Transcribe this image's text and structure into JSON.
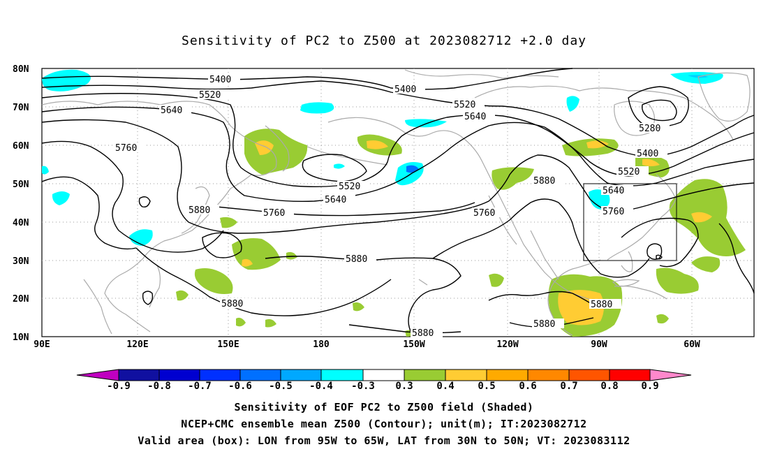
{
  "title": "Sensitivity of PC2 to Z500 at 2023082712 +2.0 day",
  "map": {
    "lat_labels": [
      "80N",
      "70N",
      "60N",
      "50N",
      "40N",
      "30N",
      "20N",
      "10N"
    ],
    "lon_labels": [
      "90E",
      "120E",
      "150E",
      "180",
      "150W",
      "120W",
      "90W",
      "60W"
    ],
    "box": {
      "lon": [
        "95W",
        "65W"
      ],
      "lat": [
        "30N",
        "50N"
      ]
    },
    "contour_values": [
      "5400",
      "5400",
      "5520",
      "5640",
      "5760",
      "5760",
      "5520",
      "5640",
      "5760",
      "5760",
      "5880",
      "5880",
      "5880",
      "5880",
      "5880",
      "5520",
      "5640",
      "5280",
      "5400",
      "5520",
      "5640",
      "5760",
      "5880",
      "5880"
    ],
    "colors": {
      "neg_low": "#c000c0",
      "neg_09": "#1010a0",
      "neg_08": "#0000d0",
      "neg_07": "#0030ff",
      "neg_06": "#0070ff",
      "neg_05": "#00a8ff",
      "neg_04": "#00d0ff",
      "neg_03": "#00ffff",
      "neutral": "#ffffff",
      "pos_03": "#99cc33",
      "pos_04": "#ffcc33",
      "pos_05": "#ffaa00",
      "pos_06": "#ff8800",
      "pos_07": "#ff5500",
      "pos_08": "#ff2200",
      "pos_09": "#ff0000",
      "pos_high": "#ff88cc",
      "coast": "#aaaaaa"
    }
  },
  "colorbar": {
    "labels": [
      "-0.9",
      "-0.8",
      "-0.7",
      "-0.6",
      "-0.5",
      "-0.4",
      "-0.3",
      "0.3",
      "0.4",
      "0.5",
      "0.6",
      "0.7",
      "0.8",
      "0.9"
    ]
  },
  "captions": {
    "line1": "Sensitivity of EOF PC2 to Z500 field (Shaded)",
    "line2": "NCEP+CMC ensemble mean Z500 (Contour); unit(m); IT:2023082712",
    "line3": "Valid area (box): LON from 95W to 65W, LAT from 30N to 50N; VT: 2023083112"
  }
}
